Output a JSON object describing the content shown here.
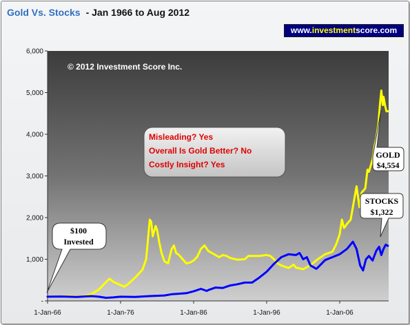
{
  "chart_data": {
    "type": "line",
    "title": "Gold Vs. Stocks",
    "subtitle": "- Jan 1966 to Aug 2012",
    "ylim": [
      0,
      6000
    ],
    "yticks": [
      0,
      1000,
      2000,
      3000,
      4000,
      5000,
      6000
    ],
    "ytick_labels": [
      "-",
      "1,000",
      "2,000",
      "3,000",
      "4,000",
      "5,000",
      "6,000"
    ],
    "xlim": [
      1966.0,
      2012.7
    ],
    "xticks": [
      1966,
      1976,
      1986,
      1996,
      2006
    ],
    "xtick_labels": [
      "1-Jan-66",
      "1-Jan-76",
      "1-Jan-86",
      "1-Jan-96",
      "1-Jan-06"
    ],
    "series": [
      {
        "name": "GOLD",
        "color": "#ffff00",
        "points": [
          [
            1966.0,
            100
          ],
          [
            1967.0,
            100
          ],
          [
            1968.0,
            110
          ],
          [
            1969.0,
            115
          ],
          [
            1970.0,
            105
          ],
          [
            1971.0,
            115
          ],
          [
            1972.0,
            160
          ],
          [
            1973.0,
            270
          ],
          [
            1974.0,
            450
          ],
          [
            1974.5,
            530
          ],
          [
            1975.0,
            460
          ],
          [
            1975.5,
            420
          ],
          [
            1976.0,
            380
          ],
          [
            1976.5,
            340
          ],
          [
            1977.0,
            400
          ],
          [
            1978.0,
            560
          ],
          [
            1979.0,
            750
          ],
          [
            1979.5,
            1000
          ],
          [
            1980.0,
            1950
          ],
          [
            1980.2,
            1900
          ],
          [
            1980.4,
            1550
          ],
          [
            1980.8,
            1800
          ],
          [
            1981.0,
            1700
          ],
          [
            1981.3,
            1400
          ],
          [
            1981.6,
            1150
          ],
          [
            1982.0,
            950
          ],
          [
            1982.5,
            900
          ],
          [
            1983.0,
            1250
          ],
          [
            1983.3,
            1330
          ],
          [
            1983.6,
            1150
          ],
          [
            1984.0,
            1100
          ],
          [
            1984.5,
            1000
          ],
          [
            1985.0,
            900
          ],
          [
            1985.5,
            920
          ],
          [
            1986.0,
            970
          ],
          [
            1986.5,
            1060
          ],
          [
            1987.0,
            1250
          ],
          [
            1987.5,
            1330
          ],
          [
            1988.0,
            1200
          ],
          [
            1988.5,
            1150
          ],
          [
            1989.0,
            1100
          ],
          [
            1989.5,
            1050
          ],
          [
            1990.0,
            1100
          ],
          [
            1990.5,
            1080
          ],
          [
            1991.0,
            1030
          ],
          [
            1992.0,
            990
          ],
          [
            1993.0,
            1000
          ],
          [
            1993.5,
            1080
          ],
          [
            1994.0,
            1080
          ],
          [
            1995.0,
            1080
          ],
          [
            1996.0,
            1100
          ],
          [
            1996.5,
            1080
          ],
          [
            1997.0,
            1000
          ],
          [
            1997.5,
            900
          ],
          [
            1998.0,
            850
          ],
          [
            1999.0,
            790
          ],
          [
            1999.7,
            870
          ],
          [
            2000.0,
            800
          ],
          [
            2001.0,
            760
          ],
          [
            2002.0,
            860
          ],
          [
            2003.0,
            1000
          ],
          [
            2004.0,
            1120
          ],
          [
            2005.0,
            1180
          ],
          [
            2005.5,
            1350
          ],
          [
            2006.0,
            1600
          ],
          [
            2006.3,
            1950
          ],
          [
            2006.6,
            1750
          ],
          [
            2007.0,
            1850
          ],
          [
            2007.5,
            1950
          ],
          [
            2008.0,
            2450
          ],
          [
            2008.3,
            2750
          ],
          [
            2008.7,
            2250
          ],
          [
            2009.0,
            2600
          ],
          [
            2009.5,
            2700
          ],
          [
            2009.8,
            3150
          ],
          [
            2010.0,
            3100
          ],
          [
            2010.5,
            3400
          ],
          [
            2010.8,
            3750
          ],
          [
            2011.0,
            3900
          ],
          [
            2011.3,
            4250
          ],
          [
            2011.5,
            4700
          ],
          [
            2011.7,
            5050
          ],
          [
            2011.9,
            4700
          ],
          [
            2012.0,
            4900
          ],
          [
            2012.2,
            4700
          ],
          [
            2012.4,
            4550
          ],
          [
            2012.6,
            4554
          ]
        ]
      },
      {
        "name": "STOCKS",
        "color": "#0000ff",
        "points": [
          [
            1966.0,
            100
          ],
          [
            1968.0,
            105
          ],
          [
            1970.0,
            95
          ],
          [
            1972.0,
            115
          ],
          [
            1973.0,
            100
          ],
          [
            1974.0,
            75
          ],
          [
            1975.0,
            85
          ],
          [
            1976.0,
            100
          ],
          [
            1978.0,
            95
          ],
          [
            1980.0,
            115
          ],
          [
            1982.0,
            130
          ],
          [
            1983.0,
            160
          ],
          [
            1985.0,
            185
          ],
          [
            1986.0,
            230
          ],
          [
            1987.0,
            290
          ],
          [
            1987.8,
            240
          ],
          [
            1988.0,
            260
          ],
          [
            1989.0,
            320
          ],
          [
            1990.0,
            310
          ],
          [
            1991.0,
            370
          ],
          [
            1992.0,
            400
          ],
          [
            1993.0,
            440
          ],
          [
            1994.0,
            440
          ],
          [
            1995.0,
            560
          ],
          [
            1996.0,
            700
          ],
          [
            1997.0,
            890
          ],
          [
            1998.0,
            1050
          ],
          [
            1999.0,
            1120
          ],
          [
            2000.0,
            1100
          ],
          [
            2000.5,
            1150
          ],
          [
            2001.0,
            1000
          ],
          [
            2001.5,
            1050
          ],
          [
            2002.0,
            850
          ],
          [
            2002.8,
            770
          ],
          [
            2003.0,
            800
          ],
          [
            2004.0,
            980
          ],
          [
            2005.0,
            1050
          ],
          [
            2006.0,
            1120
          ],
          [
            2007.0,
            1250
          ],
          [
            2007.8,
            1420
          ],
          [
            2008.3,
            1250
          ],
          [
            2008.8,
            850
          ],
          [
            2009.2,
            730
          ],
          [
            2009.6,
            1000
          ],
          [
            2010.0,
            1080
          ],
          [
            2010.5,
            970
          ],
          [
            2011.0,
            1200
          ],
          [
            2011.4,
            1300
          ],
          [
            2011.7,
            1100
          ],
          [
            2012.0,
            1250
          ],
          [
            2012.3,
            1350
          ],
          [
            2012.6,
            1322
          ]
        ]
      }
    ],
    "annotations": {
      "copyright": "© 2012 Investment Score Inc.",
      "callout_lines": [
        "Misleading?  Yes",
        "Overall Is Gold Better?  No",
        "Costly Insight?  Yes"
      ],
      "invested_lines": [
        "$100",
        "Invested"
      ],
      "gold_lines": [
        "GOLD",
        "$4,554"
      ],
      "stocks_lines": [
        "STOCKS",
        "$1,322"
      ]
    },
    "grid": false,
    "legend": "none",
    "plot_background": "#767676"
  },
  "website": {
    "prefix": "www.",
    "accent": "investment",
    "suffix": "score.com"
  }
}
